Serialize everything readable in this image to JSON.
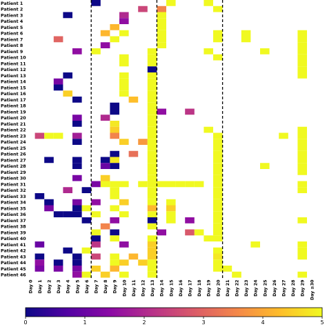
{
  "chart_data": {
    "type": "heatmap",
    "title": "",
    "xlabel": "",
    "ylabel": "",
    "patients": [
      "Patient 1",
      "Patient 2",
      "Patient 3",
      "Patient 4",
      "Patient 5",
      "Patient 6",
      "Patient 7",
      "Patient 8",
      "Patient 9",
      "Patient 10",
      "Patient 11",
      "Patient 12",
      "Patient 13",
      "Patient 14",
      "Patient 15",
      "Patient 16",
      "Patient 17",
      "Patient 18",
      "Patient 19",
      "Patient 20",
      "Patient 21",
      "Patient 22",
      "Patient 23",
      "Patient 24",
      "Patient 25",
      "Patient 26",
      "Patient 27",
      "Patient 28",
      "Patient 29",
      "Patient 30",
      "Patient 31",
      "Patient 32",
      "Patient 33",
      "Patient 34",
      "Patient 35",
      "Patient 36",
      "Patient 37",
      "Patient 38",
      "Patient 39",
      "Patient 40",
      "Patient 41",
      "Patient 42",
      "Patient 43",
      "Patient 44",
      "Patient 45",
      "Patient 46"
    ],
    "days": [
      "Day 0",
      "Day 1",
      "Day 2",
      "Day 3",
      "Day 4",
      "Day 5",
      "Day 6",
      "Day 7",
      "Day 8",
      "Day 9",
      "Day 10",
      "Day 11",
      "Day 12",
      "Day 13",
      "Day 14",
      "Day 15",
      "Day 16",
      "Day 17",
      "Day 18",
      "Day 19",
      "Day 20",
      "Day 21",
      "Day 22",
      "Day 23",
      "Day 24",
      "Day 25",
      "Day 26",
      "Day 27",
      "Day 28",
      "Day 29",
      "Day ≥30"
    ],
    "separators_after_day_index": [
      6,
      13,
      20
    ],
    "colorbar": {
      "min": 0,
      "max": 5,
      "ticks": [
        "0",
        "1",
        "2",
        "3",
        "4",
        "5"
      ]
    },
    "colormap": [
      "#0d0887",
      "#5302a3",
      "#8b0aa5",
      "#b83289",
      "#db5c68",
      "#f48849",
      "#febd2a",
      "#f0f921"
    ],
    "cells": [
      [
        0,
        7,
        0
      ],
      [
        0,
        15,
        5
      ],
      [
        0,
        19,
        5
      ],
      [
        1,
        12,
        2.5
      ],
      [
        1,
        14,
        3.5
      ],
      [
        1,
        20,
        5
      ],
      [
        2,
        4,
        0
      ],
      [
        2,
        10,
        2
      ],
      [
        2,
        14,
        5
      ],
      [
        3,
        10,
        1.5
      ],
      [
        3,
        14,
        5
      ],
      [
        4,
        9,
        4.2
      ],
      [
        4,
        14,
        5
      ],
      [
        5,
        8,
        4.2
      ],
      [
        5,
        10,
        5
      ],
      [
        5,
        14,
        5
      ],
      [
        5,
        20,
        5
      ],
      [
        5,
        23,
        5
      ],
      [
        5,
        29,
        5
      ],
      [
        6,
        3,
        3
      ],
      [
        6,
        9,
        5
      ],
      [
        6,
        14,
        5
      ],
      [
        6,
        20,
        5
      ],
      [
        6,
        23,
        5
      ],
      [
        6,
        29,
        5
      ],
      [
        7,
        8,
        1.5
      ],
      [
        7,
        14,
        5
      ],
      [
        7,
        29,
        5
      ],
      [
        8,
        5,
        1.5
      ],
      [
        8,
        7,
        5
      ],
      [
        8,
        13,
        5
      ],
      [
        8,
        19,
        5
      ],
      [
        8,
        25,
        5
      ],
      [
        8,
        29,
        5
      ],
      [
        9,
        10,
        5
      ],
      [
        9,
        13,
        5
      ],
      [
        9,
        20,
        5
      ],
      [
        9,
        29,
        5
      ],
      [
        10,
        10,
        5
      ],
      [
        10,
        13,
        5
      ],
      [
        10,
        29,
        5
      ],
      [
        11,
        13,
        0
      ],
      [
        11,
        29,
        5
      ],
      [
        12,
        4,
        0
      ],
      [
        12,
        10,
        5
      ],
      [
        12,
        13,
        5
      ],
      [
        12,
        29,
        5
      ],
      [
        13,
        3,
        1.2
      ],
      [
        13,
        10,
        5
      ],
      [
        13,
        13,
        5
      ],
      [
        14,
        3,
        0
      ],
      [
        14,
        10,
        5
      ],
      [
        14,
        13,
        5
      ],
      [
        15,
        4,
        4.5
      ],
      [
        15,
        10,
        5
      ],
      [
        15,
        13,
        5
      ],
      [
        16,
        5,
        0
      ],
      [
        16,
        11,
        4.3
      ],
      [
        16,
        13,
        5
      ],
      [
        17,
        9,
        0
      ],
      [
        17,
        13,
        5
      ],
      [
        18,
        9,
        0
      ],
      [
        18,
        14,
        1.5
      ],
      [
        18,
        17,
        2.2
      ],
      [
        18,
        13,
        5
      ],
      [
        19,
        5,
        1.2
      ],
      [
        19,
        8,
        2
      ],
      [
        19,
        13,
        5
      ],
      [
        20,
        5,
        0
      ],
      [
        20,
        9,
        4.8
      ],
      [
        20,
        13,
        5
      ],
      [
        21,
        9,
        4.5
      ],
      [
        21,
        13,
        5
      ],
      [
        21,
        19,
        5
      ],
      [
        21,
        29,
        5
      ],
      [
        22,
        1,
        2.5
      ],
      [
        22,
        2,
        5
      ],
      [
        22,
        3,
        5
      ],
      [
        22,
        5,
        1.8
      ],
      [
        22,
        9,
        3.5
      ],
      [
        22,
        13,
        5
      ],
      [
        22,
        20,
        5
      ],
      [
        22,
        27,
        5
      ],
      [
        22,
        29,
        5
      ],
      [
        23,
        5,
        0
      ],
      [
        23,
        10,
        4.5
      ],
      [
        23,
        12,
        3.8
      ],
      [
        23,
        13,
        5
      ],
      [
        23,
        20,
        5
      ],
      [
        23,
        29,
        5
      ],
      [
        24,
        13,
        5
      ],
      [
        24,
        20,
        5
      ],
      [
        24,
        29,
        5
      ],
      [
        25,
        9,
        0
      ],
      [
        25,
        11,
        3.2
      ],
      [
        25,
        13,
        5
      ],
      [
        25,
        20,
        5
      ],
      [
        25,
        29,
        5
      ],
      [
        26,
        2,
        0
      ],
      [
        26,
        5,
        0
      ],
      [
        26,
        8,
        0
      ],
      [
        26,
        9,
        4.8
      ],
      [
        26,
        13,
        5
      ],
      [
        26,
        20,
        5
      ],
      [
        26,
        29,
        5
      ],
      [
        27,
        5,
        0
      ],
      [
        27,
        8,
        1
      ],
      [
        27,
        9,
        0
      ],
      [
        27,
        13,
        5
      ],
      [
        27,
        20,
        5
      ],
      [
        27,
        25,
        5
      ],
      [
        27,
        29,
        5
      ],
      [
        28,
        13,
        5
      ],
      [
        28,
        20,
        5
      ],
      [
        28,
        29,
        5
      ],
      [
        29,
        5,
        1.2
      ],
      [
        29,
        8,
        4.5
      ],
      [
        29,
        13,
        5
      ],
      [
        29,
        20,
        5
      ],
      [
        30,
        7,
        1.2
      ],
      [
        30,
        8,
        5
      ],
      [
        30,
        9,
        5
      ],
      [
        30,
        10,
        5
      ],
      [
        30,
        12,
        5
      ],
      [
        30,
        13,
        5
      ],
      [
        30,
        14,
        5
      ],
      [
        30,
        15,
        5
      ],
      [
        30,
        16,
        5
      ],
      [
        30,
        17,
        5
      ],
      [
        30,
        18,
        5
      ],
      [
        30,
        20,
        5
      ],
      [
        30,
        29,
        5
      ],
      [
        31,
        4,
        2
      ],
      [
        31,
        6,
        0
      ],
      [
        31,
        9,
        5
      ],
      [
        31,
        13,
        5
      ],
      [
        31,
        20,
        5
      ],
      [
        31,
        29,
        5
      ],
      [
        32,
        1,
        0
      ],
      [
        32,
        9,
        5
      ],
      [
        32,
        13,
        5
      ],
      [
        32,
        20,
        5
      ],
      [
        33,
        2,
        0
      ],
      [
        33,
        5,
        1.2
      ],
      [
        33,
        7,
        1.5
      ],
      [
        33,
        10,
        4.5
      ],
      [
        33,
        13,
        5
      ],
      [
        33,
        15,
        5
      ],
      [
        33,
        20,
        5
      ],
      [
        34,
        2,
        1.2
      ],
      [
        34,
        5,
        0
      ],
      [
        34,
        6,
        5
      ],
      [
        34,
        9,
        5
      ],
      [
        34,
        13,
        4.2
      ],
      [
        34,
        15,
        4.5
      ],
      [
        34,
        20,
        5
      ],
      [
        35,
        3,
        0
      ],
      [
        35,
        4,
        0
      ],
      [
        35,
        5,
        0
      ],
      [
        35,
        7,
        5
      ],
      [
        35,
        10,
        5
      ],
      [
        35,
        13,
        5
      ],
      [
        35,
        15,
        5
      ],
      [
        35,
        20,
        5
      ],
      [
        36,
        6,
        0
      ],
      [
        36,
        9,
        1.5
      ],
      [
        36,
        13,
        0
      ],
      [
        36,
        15,
        5
      ],
      [
        36,
        17,
        1.5
      ],
      [
        36,
        20,
        5
      ],
      [
        36,
        29,
        5
      ],
      [
        37,
        8,
        3.5
      ],
      [
        37,
        13,
        5
      ],
      [
        37,
        20,
        5
      ],
      [
        38,
        7,
        5
      ],
      [
        38,
        9,
        0
      ],
      [
        38,
        14,
        1.5
      ],
      [
        38,
        17,
        2.8
      ],
      [
        38,
        18,
        5
      ],
      [
        38,
        20,
        5
      ],
      [
        39,
        7,
        0
      ],
      [
        39,
        9,
        5
      ],
      [
        39,
        13,
        5
      ],
      [
        39,
        19,
        5
      ],
      [
        39,
        20,
        5
      ],
      [
        40,
        1,
        1
      ],
      [
        40,
        7,
        2.2
      ],
      [
        40,
        10,
        1.5
      ],
      [
        40,
        13,
        4.5
      ],
      [
        40,
        24,
        5
      ],
      [
        40,
        29,
        5
      ],
      [
        41,
        4,
        0
      ],
      [
        41,
        6,
        5
      ],
      [
        41,
        13,
        4.5
      ],
      [
        41,
        20,
        5
      ],
      [
        41,
        29,
        5
      ],
      [
        42,
        1,
        0
      ],
      [
        42,
        5,
        0
      ],
      [
        42,
        7,
        2.5
      ],
      [
        42,
        9,
        5
      ],
      [
        42,
        11,
        4.2
      ],
      [
        42,
        13,
        4.5
      ],
      [
        42,
        20,
        4.8
      ],
      [
        42,
        29,
        5
      ],
      [
        43,
        1,
        1.5
      ],
      [
        43,
        3,
        0
      ],
      [
        43,
        5,
        0
      ],
      [
        43,
        9,
        5
      ],
      [
        43,
        10,
        4.5
      ],
      [
        43,
        12,
        4.5
      ],
      [
        43,
        13,
        5
      ],
      [
        43,
        20,
        5
      ],
      [
        44,
        1,
        1.2
      ],
      [
        44,
        3,
        1.2
      ],
      [
        44,
        5,
        1.2
      ],
      [
        44,
        7,
        4.5
      ],
      [
        44,
        9,
        4.2
      ],
      [
        44,
        13,
        5
      ],
      [
        44,
        20,
        5
      ],
      [
        44,
        21,
        5
      ],
      [
        45,
        5,
        1.5
      ],
      [
        45,
        6,
        5
      ],
      [
        45,
        8,
        4.5
      ],
      [
        45,
        10,
        5
      ],
      [
        45,
        13,
        5
      ],
      [
        45,
        22,
        5
      ],
      [
        45,
        29,
        5
      ]
    ]
  }
}
